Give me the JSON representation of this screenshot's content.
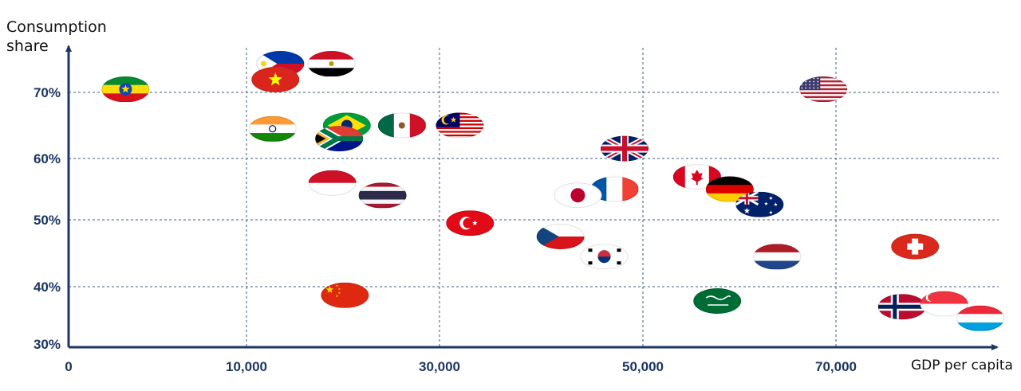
{
  "chart_data": {
    "type": "scatter",
    "title": "",
    "xlabel": "GDP per capita",
    "ylabel": "Consumption share",
    "xlim": [
      0,
      90000
    ],
    "ylim": [
      30,
      77
    ],
    "y_ticks": [
      {
        "label": "30%",
        "value": 30
      },
      {
        "label": "40%",
        "value": 40
      },
      {
        "label": "50%",
        "value": 50
      },
      {
        "label": "60%",
        "value": 60
      },
      {
        "label": "70%",
        "value": 70
      }
    ],
    "x_ticks": [
      {
        "label": "0",
        "value": 0
      },
      {
        "label": "10,000",
        "value": 10000
      },
      {
        "label": "30,000",
        "value": 30000
      },
      {
        "label": "50,000",
        "value": 50000
      },
      {
        "label": "70,000",
        "value": 70000
      }
    ],
    "grid": true,
    "points": [
      {
        "flag": "ethiopia",
        "x": 3200,
        "y": 70.5
      },
      {
        "flag": "philippines",
        "x": 13500,
        "y": 74.5
      },
      {
        "flag": "egypt",
        "x": 18800,
        "y": 74.5
      },
      {
        "flag": "vietnam",
        "x": 13000,
        "y": 72.0
      },
      {
        "flag": "india",
        "x": 12700,
        "y": 64.5
      },
      {
        "flag": "brazil",
        "x": 20400,
        "y": 65.0
      },
      {
        "flag": "south-africa",
        "x": 19600,
        "y": 63.0
      },
      {
        "flag": "mexico",
        "x": 26100,
        "y": 65.0
      },
      {
        "flag": "malaysia",
        "x": 32000,
        "y": 65.0
      },
      {
        "flag": "indonesia",
        "x": 18900,
        "y": 56.0
      },
      {
        "flag": "thailand",
        "x": 24100,
        "y": 54.0
      },
      {
        "flag": "turkey",
        "x": 33000,
        "y": 49.5
      },
      {
        "flag": "china",
        "x": 20200,
        "y": 38.5
      },
      {
        "flag": "united-kingdom",
        "x": 48200,
        "y": 61.5
      },
      {
        "flag": "france",
        "x": 47200,
        "y": 55.0
      },
      {
        "flag": "japan",
        "x": 43600,
        "y": 54.0
      },
      {
        "flag": "czech-republic",
        "x": 41900,
        "y": 47.5
      },
      {
        "flag": "south-korea",
        "x": 46200,
        "y": 44.5
      },
      {
        "flag": "canada",
        "x": 55600,
        "y": 57.0
      },
      {
        "flag": "germany",
        "x": 59000,
        "y": 55.0
      },
      {
        "flag": "australia",
        "x": 62100,
        "y": 52.5
      },
      {
        "flag": "united-states",
        "x": 68700,
        "y": 70.5
      },
      {
        "flag": "netherlands",
        "x": 63900,
        "y": 44.5
      },
      {
        "flag": "saudi-arabia",
        "x": 57700,
        "y": 37.5
      },
      {
        "flag": "switzerland",
        "x": 80900,
        "y": 46.0
      },
      {
        "flag": "norway",
        "x": 79100,
        "y": 36.5
      },
      {
        "flag": "singapore",
        "x": 84900,
        "y": 37.0
      },
      {
        "flag": "luxembourg",
        "x": 89900,
        "y": 34.5
      }
    ]
  }
}
